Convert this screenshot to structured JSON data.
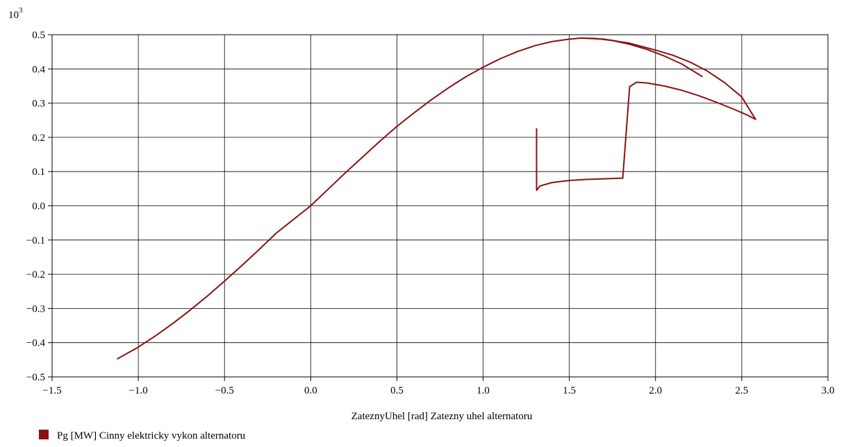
{
  "chart_data": {
    "type": "line",
    "title": "",
    "xlabel": "ZateznyUhel [rad] Zatezny uhel alternatoru",
    "ylabel": "",
    "y_multiplier_base": "10",
    "y_multiplier_exp": "3",
    "xlim": [
      -1.5,
      3.0
    ],
    "ylim": [
      -0.5,
      0.5
    ],
    "grid": true,
    "legend_position": "bottom-left",
    "x_ticks": [
      "−1.5",
      "−1.0",
      "−0.5",
      "0.0",
      "0.5",
      "1.0",
      "1.5",
      "2.0",
      "2.5",
      "3.0"
    ],
    "y_ticks": [
      "−0.5",
      "−0.4",
      "−0.3",
      "−0.2",
      "−0.1",
      "0.0",
      "0.1",
      "0.2",
      "0.3",
      "0.4",
      "0.5"
    ],
    "series": [
      {
        "name": "Pg [MW] Cinny elektricky vykon alternatoru",
        "color": "#8b1010",
        "segments": [
          [
            [
              -1.12,
              -0.447
            ],
            [
              -1.0,
              -0.413
            ],
            [
              -0.9,
              -0.38
            ],
            [
              -0.8,
              -0.344
            ],
            [
              -0.7,
              -0.305
            ],
            [
              -0.6,
              -0.264
            ],
            [
              -0.5,
              -0.22
            ],
            [
              -0.4,
              -0.175
            ],
            [
              -0.3,
              -0.128
            ],
            [
              -0.2,
              -0.08
            ],
            [
              -0.1,
              -0.04
            ],
            [
              0.0,
              0.0
            ],
            [
              0.1,
              0.048
            ],
            [
              0.2,
              0.096
            ],
            [
              0.3,
              0.142
            ],
            [
              0.4,
              0.188
            ],
            [
              0.5,
              0.232
            ],
            [
              0.6,
              0.272
            ],
            [
              0.7,
              0.31
            ],
            [
              0.8,
              0.345
            ],
            [
              0.9,
              0.377
            ],
            [
              1.0,
              0.405
            ],
            [
              1.1,
              0.43
            ],
            [
              1.2,
              0.451
            ],
            [
              1.3,
              0.468
            ],
            [
              1.4,
              0.48
            ],
            [
              1.5,
              0.487
            ],
            [
              1.57,
              0.49
            ],
            [
              1.65,
              0.489
            ],
            [
              1.75,
              0.483
            ],
            [
              1.85,
              0.472
            ],
            [
              1.95,
              0.457
            ],
            [
              2.05,
              0.438
            ],
            [
              2.15,
              0.415
            ],
            [
              2.27,
              0.378
            ]
          ],
          [
            [
              1.57,
              0.49
            ],
            [
              1.7,
              0.487
            ],
            [
              1.85,
              0.475
            ],
            [
              2.0,
              0.455
            ],
            [
              2.1,
              0.44
            ],
            [
              2.2,
              0.42
            ],
            [
              2.3,
              0.394
            ],
            [
              2.4,
              0.36
            ],
            [
              2.5,
              0.318
            ],
            [
              2.58,
              0.253
            ]
          ],
          [
            [
              1.31,
              0.225
            ],
            [
              1.31,
              0.045
            ],
            [
              1.33,
              0.058
            ],
            [
              1.4,
              0.068
            ],
            [
              1.5,
              0.074
            ],
            [
              1.6,
              0.077
            ],
            [
              1.7,
              0.079
            ],
            [
              1.81,
              0.081
            ],
            [
              1.85,
              0.348
            ],
            [
              1.89,
              0.361
            ],
            [
              1.95,
              0.359
            ],
            [
              2.05,
              0.35
            ],
            [
              2.15,
              0.338
            ],
            [
              2.25,
              0.322
            ],
            [
              2.35,
              0.303
            ],
            [
              2.45,
              0.283
            ],
            [
              2.52,
              0.268
            ],
            [
              2.58,
              0.253
            ]
          ]
        ]
      }
    ]
  }
}
